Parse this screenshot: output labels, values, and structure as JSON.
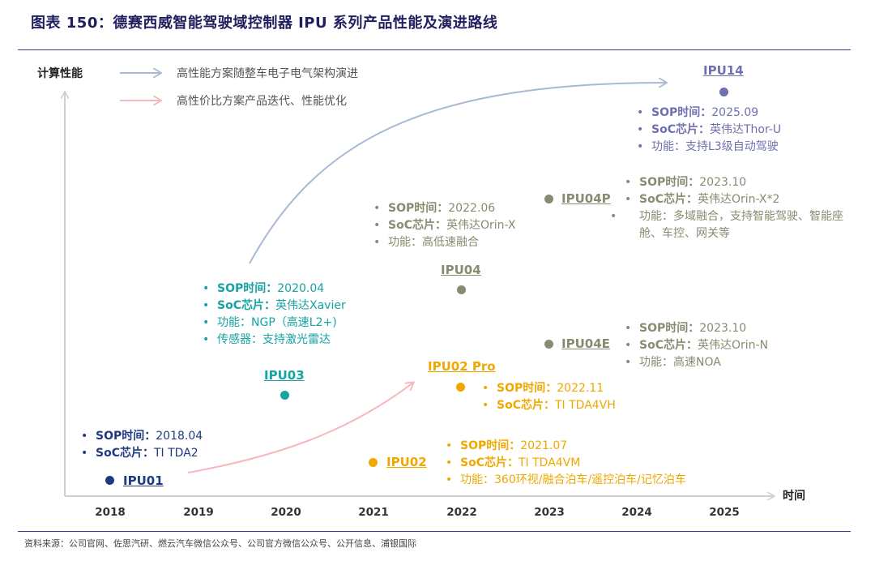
{
  "title": "图表 150：德赛西威智能驾驶域控制器 IPU 系列产品性能及演进路线",
  "source": "资料来源：公司官网、佐思汽研、燃云汽车微信公众号、公司官方微信公众号、公开信息、浦银国际",
  "axes": {
    "y_label": "计算性能",
    "x_label": "时间"
  },
  "legend": [
    {
      "label": "高性能方案随整车电子电气架构演进",
      "color": "#a7b9d3"
    },
    {
      "label": "高性价比方案产品迭代、性能优化",
      "color": "#f6b7bd"
    }
  ],
  "years": [
    "2018",
    "2019",
    "2020",
    "2021",
    "2022",
    "2023",
    "2024",
    "2025"
  ],
  "colors": {
    "navy": "#1f3a80",
    "teal": "#15a3a3",
    "olive": "#898b70",
    "amber": "#f0a800",
    "purple": "#6f70b0"
  },
  "products": {
    "ipu01": {
      "name": "IPU01",
      "info": [
        {
          "key": "SOP时间：",
          "value": "2018.04"
        },
        {
          "key": "SoC芯片：",
          "value": "TI TDA2"
        }
      ]
    },
    "ipu02": {
      "name": "IPU02",
      "info": [
        {
          "key": "SOP时间：",
          "value": "2021.07"
        },
        {
          "key": "SoC芯片：",
          "value": "TI TDA4VM"
        },
        {
          "key": "",
          "value": "功能：360环视/融合泊车/遥控泊车/记忆泊车"
        }
      ]
    },
    "ipu02pro": {
      "name": "IPU02 Pro",
      "info": [
        {
          "key": "SOP时间：",
          "value": "2022.11"
        },
        {
          "key": "SoC芯片：",
          "value": "TI TDA4VH"
        }
      ]
    },
    "ipu03": {
      "name": "IPU03",
      "info": [
        {
          "key": "SOP时间：",
          "value": "2020.04"
        },
        {
          "key": "SoC芯片：",
          "value": "英伟达Xavier"
        },
        {
          "key": "",
          "value": "功能：NGP（高速L2+)"
        },
        {
          "key": "",
          "value": "传感器：支持激光雷达"
        }
      ]
    },
    "ipu04": {
      "name": "IPU04",
      "info": [
        {
          "key": "SOP时间：",
          "value": "2022.06"
        },
        {
          "key": "SoC芯片：",
          "value": "英伟达Orin-X"
        },
        {
          "key": "",
          "value": "功能：高低速融合"
        }
      ]
    },
    "ipu04p": {
      "name": "IPU04P",
      "info": [
        {
          "key": "SOP时间：",
          "value": "2023.10"
        },
        {
          "key": "SoC芯片：",
          "value": "英伟达Orin-X*2"
        },
        {
          "key": "",
          "value": "功能：多域融合，支持智能驾驶、智能座舱、车控、网关等"
        }
      ]
    },
    "ipu04e": {
      "name": "IPU04E",
      "info": [
        {
          "key": "SOP时间：",
          "value": "2023.10"
        },
        {
          "key": "SoC芯片：",
          "value": "英伟达Orin-N"
        },
        {
          "key": "",
          "value": "功能：高速NOA"
        }
      ]
    },
    "ipu14": {
      "name": "IPU14",
      "info": [
        {
          "key": "SOP时间：",
          "value": "2025.09"
        },
        {
          "key": "SoC芯片：",
          "value": "英伟达Thor-U"
        },
        {
          "key": "",
          "value": "功能：支持L3级自动驾驶"
        }
      ]
    }
  }
}
